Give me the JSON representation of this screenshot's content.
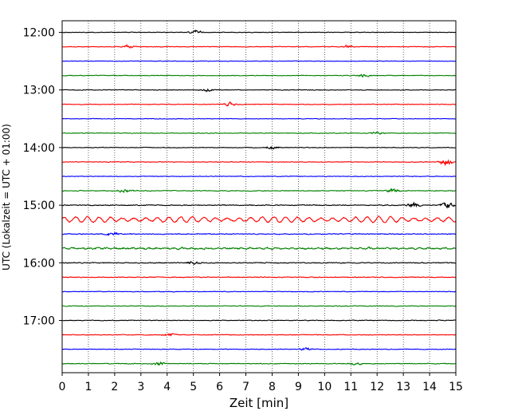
{
  "chart_data": {
    "type": "line",
    "title": "",
    "xlabel": "Zeit  [min]",
    "ylabel": "UTC (Lokalzeit = UTC + 01:00)",
    "xlim": [
      0,
      15
    ],
    "x_ticks": [
      "0",
      "1",
      "2",
      "3",
      "4",
      "5",
      "6",
      "7",
      "8",
      "9",
      "10",
      "11",
      "12",
      "13",
      "14",
      "15"
    ],
    "y_ticks": [
      {
        "label": "12:00",
        "trace": 0
      },
      {
        "label": "13:00",
        "trace": 4
      },
      {
        "label": "14:00",
        "trace": 8
      },
      {
        "label": "15:00",
        "trace": 12
      },
      {
        "label": "16:00",
        "trace": 16
      },
      {
        "label": "17:00",
        "trace": 20
      }
    ],
    "grid": "vertical dotted lines at each minute",
    "trace_interval_minutes": 15,
    "trace_colors": [
      "#000000",
      "#ff0000",
      "#0000ff",
      "#008000"
    ],
    "traces": [
      {
        "start": "12:00",
        "color": "#000000",
        "amplitude": 0.25,
        "events": [
          {
            "x": 5.1,
            "amp": 1.6
          }
        ]
      },
      {
        "start": "12:15",
        "color": "#ff0000",
        "amplitude": 0.28,
        "events": [
          {
            "x": 2.5,
            "amp": 1.4
          },
          {
            "x": 10.9,
            "amp": 1.2
          }
        ]
      },
      {
        "start": "12:30",
        "color": "#0000ff",
        "amplitude": 0.25,
        "events": []
      },
      {
        "start": "12:45",
        "color": "#008000",
        "amplitude": 0.28,
        "events": [
          {
            "x": 11.5,
            "amp": 1.3
          }
        ]
      },
      {
        "start": "13:00",
        "color": "#000000",
        "amplitude": 0.28,
        "events": [
          {
            "x": 5.5,
            "amp": 1.2
          }
        ]
      },
      {
        "start": "13:15",
        "color": "#ff0000",
        "amplitude": 0.3,
        "events": [
          {
            "x": 6.4,
            "amp": 1.4
          }
        ]
      },
      {
        "start": "13:30",
        "color": "#0000ff",
        "amplitude": 0.25,
        "events": []
      },
      {
        "start": "13:45",
        "color": "#008000",
        "amplitude": 0.3,
        "events": [
          {
            "x": 12.0,
            "amp": 1.2
          }
        ]
      },
      {
        "start": "14:00",
        "color": "#000000",
        "amplitude": 0.3,
        "events": [
          {
            "x": 8.0,
            "amp": 1.3
          }
        ]
      },
      {
        "start": "14:15",
        "color": "#ff0000",
        "amplitude": 0.3,
        "events": [
          {
            "x": 14.6,
            "amp": 3.2
          }
        ]
      },
      {
        "start": "14:30",
        "color": "#0000ff",
        "amplitude": 0.3,
        "events": []
      },
      {
        "start": "14:45",
        "color": "#008000",
        "amplitude": 0.35,
        "events": [
          {
            "x": 2.4,
            "amp": 1.4
          },
          {
            "x": 12.6,
            "amp": 1.4
          }
        ]
      },
      {
        "start": "15:00",
        "color": "#000000",
        "amplitude": 0.4,
        "events": [
          {
            "x": 13.4,
            "amp": 2.2
          },
          {
            "x": 14.7,
            "amp": 3.0
          }
        ]
      },
      {
        "start": "15:15",
        "color": "#ff0000",
        "amplitude": 1.6,
        "events": []
      },
      {
        "start": "15:30",
        "color": "#0000ff",
        "amplitude": 0.4,
        "events": [
          {
            "x": 1.9,
            "amp": 1.4
          }
        ]
      },
      {
        "start": "15:45",
        "color": "#008000",
        "amplitude": 0.6,
        "events": []
      },
      {
        "start": "16:00",
        "color": "#000000",
        "amplitude": 0.4,
        "events": [
          {
            "x": 5.0,
            "amp": 1.5
          }
        ]
      },
      {
        "start": "16:15",
        "color": "#ff0000",
        "amplitude": 0.35,
        "events": []
      },
      {
        "start": "16:30",
        "color": "#0000ff",
        "amplitude": 0.3,
        "events": []
      },
      {
        "start": "16:45",
        "color": "#008000",
        "amplitude": 0.3,
        "events": []
      },
      {
        "start": "17:00",
        "color": "#000000",
        "amplitude": 0.3,
        "events": []
      },
      {
        "start": "17:15",
        "color": "#ff0000",
        "amplitude": 0.3,
        "events": [
          {
            "x": 4.1,
            "amp": 1.4
          }
        ]
      },
      {
        "start": "17:30",
        "color": "#0000ff",
        "amplitude": 0.3,
        "events": [
          {
            "x": 9.3,
            "amp": 1.2
          }
        ]
      },
      {
        "start": "17:45",
        "color": "#008000",
        "amplitude": 0.35,
        "events": [
          {
            "x": 3.7,
            "amp": 1.3
          },
          {
            "x": 11.2,
            "amp": 1.2
          }
        ]
      }
    ]
  }
}
